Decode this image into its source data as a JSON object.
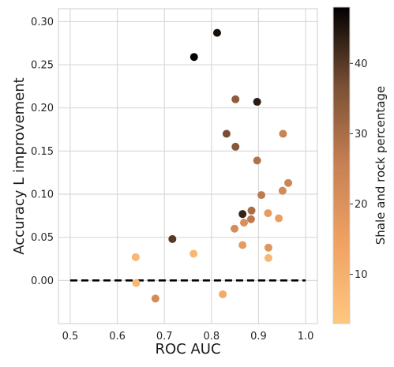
{
  "chart_data": {
    "type": "scatter",
    "xlabel": "ROC AUC",
    "ylabel": "Accuracy L improvement",
    "xlim": [
      0.475,
      1.025
    ],
    "ylim": [
      -0.05,
      0.315
    ],
    "x_ticks": [
      0.5,
      0.6,
      0.7,
      0.8,
      0.9,
      1.0
    ],
    "x_tick_labels": [
      "0.5",
      "0.6",
      "0.7",
      "0.8",
      "0.9",
      "1.0"
    ],
    "y_ticks": [
      0.0,
      0.05,
      0.1,
      0.15,
      0.2,
      0.25,
      0.3
    ],
    "y_tick_labels": [
      "0.00",
      "0.05",
      "0.10",
      "0.15",
      "0.20",
      "0.25",
      "0.30"
    ],
    "grid": true,
    "baseline": {
      "y": 0.0,
      "x_range": [
        0.5,
        1.0
      ],
      "style": "dashed",
      "color": "#000000"
    },
    "colorbar": {
      "label": "Shale and rock percentage",
      "range": [
        3,
        48
      ],
      "ticks": [
        10,
        20,
        30,
        40
      ],
      "tick_labels": [
        "10",
        "20",
        "30",
        "40"
      ],
      "colormap": "copper_r"
    },
    "points": [
      {
        "x": 0.812,
        "y": 0.287,
        "c": 46
      },
      {
        "x": 0.763,
        "y": 0.259,
        "c": 48
      },
      {
        "x": 0.897,
        "y": 0.207,
        "c": 44
      },
      {
        "x": 0.851,
        "y": 0.21,
        "c": 34
      },
      {
        "x": 0.832,
        "y": 0.17,
        "c": 37
      },
      {
        "x": 0.851,
        "y": 0.155,
        "c": 35
      },
      {
        "x": 0.952,
        "y": 0.17,
        "c": 25
      },
      {
        "x": 0.897,
        "y": 0.139,
        "c": 29
      },
      {
        "x": 0.963,
        "y": 0.113,
        "c": 24
      },
      {
        "x": 0.951,
        "y": 0.104,
        "c": 23
      },
      {
        "x": 0.906,
        "y": 0.099,
        "c": 27
      },
      {
        "x": 0.866,
        "y": 0.077,
        "c": 43
      },
      {
        "x": 0.885,
        "y": 0.081,
        "c": 30
      },
      {
        "x": 0.884,
        "y": 0.071,
        "c": 27
      },
      {
        "x": 0.869,
        "y": 0.067,
        "c": 21
      },
      {
        "x": 0.92,
        "y": 0.078,
        "c": 17
      },
      {
        "x": 0.943,
        "y": 0.072,
        "c": 16
      },
      {
        "x": 0.849,
        "y": 0.06,
        "c": 22
      },
      {
        "x": 0.717,
        "y": 0.048,
        "c": 40
      },
      {
        "x": 0.866,
        "y": 0.041,
        "c": 17
      },
      {
        "x": 0.921,
        "y": 0.038,
        "c": 19
      },
      {
        "x": 0.639,
        "y": 0.027,
        "c": 8
      },
      {
        "x": 0.921,
        "y": 0.026,
        "c": 8
      },
      {
        "x": 0.762,
        "y": 0.031,
        "c": 8
      },
      {
        "x": 0.64,
        "y": -0.003,
        "c": 8
      },
      {
        "x": 0.824,
        "y": -0.016,
        "c": 12
      },
      {
        "x": 0.681,
        "y": -0.021,
        "c": 22
      }
    ]
  }
}
